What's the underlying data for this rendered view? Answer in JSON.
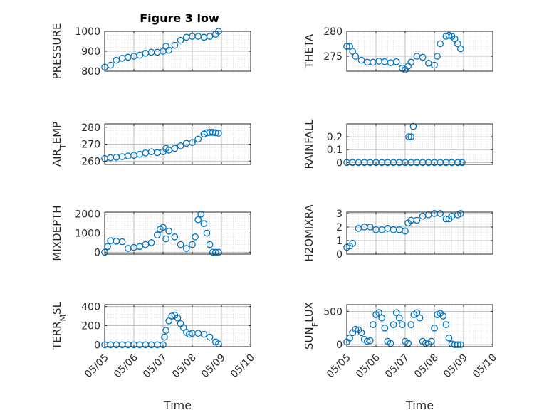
{
  "figure_title": "Figure 3 low",
  "colors": {
    "marker": "#0072BD",
    "axis": "#262626",
    "grid": "#b0b0b0"
  },
  "chart_data": [
    {
      "type": "scatter",
      "name": "pressure-panel",
      "title": "Figure 3 low",
      "ylabel": "PRESSURE",
      "ylabel_sub": null,
      "ylabel_rest": null,
      "ylim": [
        800,
        1000
      ],
      "yticks": [
        800,
        900,
        1000
      ],
      "xlim": [
        0,
        5
      ],
      "xticks": [
        0,
        1,
        2,
        3,
        4,
        5
      ],
      "xticklabels": [],
      "xlabel": "",
      "x": [
        0.0,
        0.2,
        0.4,
        0.6,
        0.8,
        1.0,
        1.2,
        1.4,
        1.6,
        1.8,
        2.0,
        2.1,
        2.2,
        2.4,
        2.6,
        2.8,
        3.0,
        3.2,
        3.4,
        3.6,
        3.8,
        3.9
      ],
      "y": [
        820,
        830,
        855,
        865,
        870,
        875,
        880,
        890,
        895,
        895,
        900,
        925,
        905,
        930,
        955,
        970,
        975,
        975,
        970,
        975,
        985,
        1000
      ]
    },
    {
      "type": "scatter",
      "name": "theta-panel",
      "title": "",
      "ylabel": "THETA",
      "ylabel_sub": null,
      "ylabel_rest": null,
      "ylim": [
        272,
        280
      ],
      "yticks": [
        275,
        280
      ],
      "xlim": [
        0,
        5
      ],
      "xticks": [
        0,
        1,
        2,
        3,
        4,
        5
      ],
      "xticklabels": [],
      "xlabel": "",
      "x": [
        0.0,
        0.1,
        0.2,
        0.3,
        0.5,
        0.7,
        0.9,
        1.1,
        1.3,
        1.5,
        1.7,
        1.9,
        2.0,
        2.1,
        2.2,
        2.4,
        2.6,
        2.8,
        3.0,
        3.1,
        3.2,
        3.4,
        3.5,
        3.6,
        3.7,
        3.8,
        3.9
      ],
      "y": [
        277,
        277,
        276,
        275,
        274.2,
        273.8,
        273.8,
        274,
        273.9,
        273.7,
        273.9,
        272.6,
        272.3,
        273,
        273.8,
        275,
        274.8,
        273.6,
        273.2,
        275,
        277.5,
        279,
        279.2,
        279,
        278.5,
        277.5,
        276.5
      ]
    },
    {
      "type": "scatter",
      "name": "air-temp-panel",
      "title": "",
      "ylabel": "AIR",
      "ylabel_sub": "T",
      "ylabel_rest": "EMP",
      "ylim": [
        258,
        282
      ],
      "yticks": [
        260,
        270,
        280
      ],
      "xlim": [
        0,
        5
      ],
      "xticks": [
        0,
        1,
        2,
        3,
        4,
        5
      ],
      "xticklabels": [],
      "xlabel": "",
      "x": [
        0.0,
        0.2,
        0.4,
        0.6,
        0.8,
        1.0,
        1.2,
        1.4,
        1.6,
        1.8,
        2.0,
        2.1,
        2.2,
        2.4,
        2.6,
        2.8,
        3.0,
        3.2,
        3.4,
        3.5,
        3.6,
        3.7,
        3.8,
        3.9
      ],
      "y": [
        261.5,
        262,
        262.3,
        262.6,
        263,
        263.4,
        264,
        264.8,
        265.5,
        265,
        265.5,
        267.5,
        266.5,
        267.5,
        269,
        270.5,
        271,
        273,
        276,
        276.8,
        277,
        277,
        276.8,
        276.5
      ]
    },
    {
      "type": "scatter",
      "name": "rainfall-panel",
      "title": "",
      "ylabel": "RAINFALL",
      "ylabel_sub": null,
      "ylabel_rest": null,
      "ylim": [
        -0.015,
        0.3
      ],
      "yticks": [
        0,
        0.1,
        0.2
      ],
      "xlim": [
        0,
        5
      ],
      "xticks": [
        0,
        1,
        2,
        3,
        4,
        5
      ],
      "xticklabels": [],
      "xlabel": "",
      "x": [
        0.0,
        0.2,
        0.4,
        0.6,
        0.8,
        1.0,
        1.2,
        1.4,
        1.6,
        1.8,
        2.0,
        2.2,
        2.4,
        2.6,
        2.8,
        3.0,
        3.2,
        3.4,
        3.6,
        3.8,
        3.95,
        2.12,
        2.2,
        2.28
      ],
      "y": [
        0,
        0,
        0,
        0,
        0,
        0,
        0,
        0,
        0,
        0,
        0,
        0,
        0,
        0,
        0,
        0,
        0,
        0,
        0,
        0,
        0,
        0.2,
        0.2,
        0.28
      ]
    },
    {
      "type": "scatter",
      "name": "mixdepth-panel",
      "title": "",
      "ylabel": "MIXDEPTH",
      "ylabel_sub": null,
      "ylabel_rest": null,
      "ylim": [
        -100,
        2100
      ],
      "yticks": [
        0,
        1000,
        2000
      ],
      "xlim": [
        0,
        5
      ],
      "xticks": [
        0,
        1,
        2,
        3,
        4,
        5
      ],
      "xticklabels": [],
      "xlabel": "",
      "x": [
        0.0,
        0.1,
        0.2,
        0.4,
        0.6,
        0.8,
        1.0,
        1.2,
        1.4,
        1.6,
        1.8,
        1.9,
        2.0,
        2.1,
        2.2,
        2.4,
        2.6,
        2.8,
        3.0,
        3.1,
        3.2,
        3.3,
        3.4,
        3.5,
        3.6,
        3.7,
        3.8,
        3.9
      ],
      "y": [
        0,
        300,
        600,
        580,
        550,
        200,
        250,
        300,
        400,
        500,
        900,
        1200,
        1300,
        700,
        1100,
        800,
        400,
        200,
        400,
        800,
        1700,
        2000,
        1500,
        1000,
        400,
        0,
        0,
        0
      ]
    },
    {
      "type": "scatter",
      "name": "h2omixra-panel",
      "title": "",
      "ylabel": "H2OMIXRA",
      "ylabel_sub": null,
      "ylabel_rest": null,
      "ylim": [
        0,
        3.1
      ],
      "yticks": [
        0,
        1,
        2,
        3
      ],
      "xlim": [
        0,
        5
      ],
      "xticks": [
        0,
        1,
        2,
        3,
        4,
        5
      ],
      "xticklabels": [],
      "xlabel": "",
      "x": [
        0.0,
        0.1,
        0.2,
        0.4,
        0.6,
        0.8,
        1.0,
        1.2,
        1.4,
        1.6,
        1.8,
        2.0,
        2.1,
        2.2,
        2.4,
        2.6,
        2.8,
        3.0,
        3.2,
        3.4,
        3.5,
        3.6,
        3.8,
        3.9
      ],
      "y": [
        0.5,
        0.6,
        0.8,
        1.9,
        2.0,
        2.0,
        1.8,
        1.8,
        1.9,
        1.8,
        1.8,
        1.7,
        2.3,
        2.5,
        2.5,
        2.8,
        2.9,
        3.0,
        3.0,
        2.6,
        2.6,
        2.8,
        2.9,
        3.0
      ]
    },
    {
      "type": "scatter",
      "name": "terr-msl-panel",
      "title": "",
      "ylabel": "TERR",
      "ylabel_sub": "M",
      "ylabel_rest": "SL",
      "ylim": [
        -20,
        420
      ],
      "yticks": [
        0,
        200,
        400
      ],
      "xlim": [
        0,
        5
      ],
      "xticks": [
        0,
        1,
        2,
        3,
        4,
        5
      ],
      "xticklabels": [
        "05/05",
        "05/06",
        "05/07",
        "05/08",
        "05/09",
        "05/10"
      ],
      "xlabel": "Time",
      "x": [
        0.0,
        0.2,
        0.4,
        0.6,
        0.8,
        1.0,
        1.2,
        1.4,
        1.6,
        1.8,
        2.0,
        2.05,
        2.1,
        2.2,
        2.3,
        2.4,
        2.5,
        2.6,
        2.7,
        2.8,
        2.9,
        3.0,
        3.2,
        3.4,
        3.6,
        3.8,
        3.9
      ],
      "y": [
        0,
        0,
        0,
        0,
        0,
        0,
        0,
        0,
        0,
        0,
        0,
        80,
        150,
        250,
        300,
        310,
        280,
        220,
        180,
        130,
        110,
        120,
        120,
        110,
        80,
        30,
        10
      ]
    },
    {
      "type": "scatter",
      "name": "sun-flux-panel",
      "title": "",
      "ylabel": "SUN",
      "ylabel_sub": "F",
      "ylabel_rest": "LUX",
      "ylim": [
        -30,
        600
      ],
      "yticks": [
        0,
        500
      ],
      "xlim": [
        0,
        5
      ],
      "xticks": [
        0,
        1,
        2,
        3,
        4,
        5
      ],
      "xticklabels": [
        "05/05",
        "05/06",
        "05/07",
        "05/08",
        "05/09",
        "05/10"
      ],
      "xlabel": "Time",
      "x": [
        0.0,
        0.1,
        0.2,
        0.3,
        0.4,
        0.5,
        0.6,
        0.7,
        0.8,
        0.9,
        1.0,
        1.1,
        1.2,
        1.3,
        1.4,
        1.5,
        1.6,
        1.7,
        1.8,
        1.9,
        2.0,
        2.1,
        2.2,
        2.3,
        2.4,
        2.5,
        2.6,
        2.7,
        2.8,
        2.9,
        3.0,
        3.1,
        3.2,
        3.3,
        3.4,
        3.5,
        3.6,
        3.7,
        3.8,
        3.9
      ],
      "y": [
        40,
        100,
        180,
        230,
        220,
        180,
        80,
        50,
        60,
        300,
        450,
        480,
        400,
        250,
        50,
        20,
        300,
        480,
        400,
        300,
        50,
        20,
        300,
        450,
        480,
        400,
        50,
        20,
        10,
        50,
        250,
        450,
        470,
        430,
        300,
        100,
        10,
        0,
        0,
        0
      ]
    }
  ]
}
